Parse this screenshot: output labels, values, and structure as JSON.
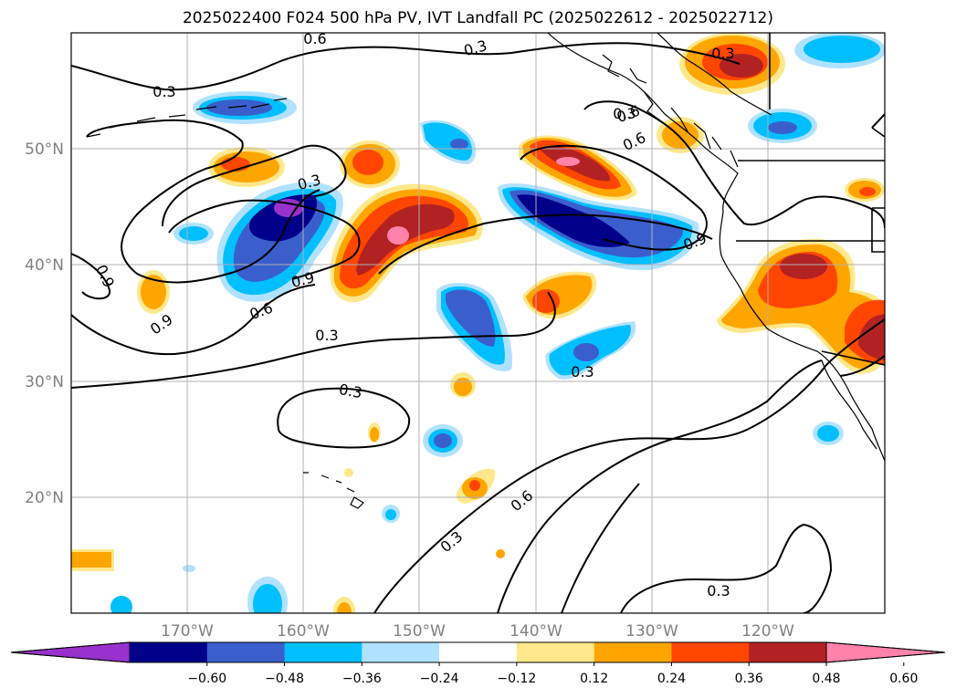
{
  "title": "2025022400 F024 500 hPa PV, IVT Landfall PC (2025022612 - 2025022712)",
  "map": {
    "lon_labels": [
      "170°W",
      "160°W",
      "150°W",
      "140°W",
      "130°W",
      "120°W"
    ],
    "lat_labels": [
      "50°N",
      "40°N",
      "30°N",
      "20°N"
    ],
    "contour_labels": [
      {
        "text": "0.3"
      },
      {
        "text": "0.3"
      },
      {
        "text": "0.6"
      },
      {
        "text": "0.3"
      },
      {
        "text": "0.6"
      },
      {
        "text": "0.9"
      },
      {
        "text": "0.3"
      },
      {
        "text": "0.9"
      },
      {
        "text": "0.9"
      },
      {
        "text": "0.9"
      },
      {
        "text": "0.6"
      },
      {
        "text": "0.3"
      },
      {
        "text": "0.3"
      },
      {
        "text": "0.3"
      },
      {
        "text": "0.6"
      },
      {
        "text": "0.3"
      },
      {
        "text": "0.3"
      },
      {
        "text": "0.6"
      },
      {
        "text": "0.3"
      }
    ]
  },
  "colorbar": {
    "colors": [
      "#9932cc",
      "#00008b",
      "#3a5fcd",
      "#00bfff",
      "#b0e2ff",
      "#ffffff",
      "#ffe88c",
      "#ffa500",
      "#ff4500",
      "#b22222",
      "#ff82ab"
    ],
    "labels": [
      "−0.60",
      "−0.48",
      "−0.36",
      "−0.24",
      "−0.12",
      "0.12",
      "0.24",
      "0.36",
      "0.48",
      "0.60"
    ]
  }
}
